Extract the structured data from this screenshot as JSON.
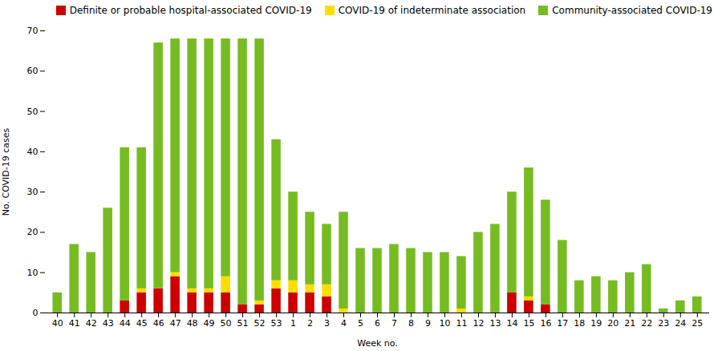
{
  "chart_data": {
    "type": "bar",
    "stacked": true,
    "categories": [
      "40",
      "41",
      "42",
      "43",
      "44",
      "45",
      "46",
      "47",
      "48",
      "49",
      "50",
      "51",
      "52",
      "53",
      "1",
      "2",
      "3",
      "4",
      "5",
      "6",
      "7",
      "8",
      "9",
      "10",
      "11",
      "12",
      "13",
      "14",
      "15",
      "16",
      "17",
      "18",
      "19",
      "20",
      "21",
      "22",
      "23",
      "24",
      "25"
    ],
    "series": [
      {
        "name": "Definite or probable hospital-associated COVID-19",
        "color": "#cc0000",
        "values": [
          0,
          0,
          0,
          0,
          3,
          5,
          6,
          9,
          5,
          5,
          5,
          2,
          2,
          6,
          5,
          5,
          4,
          0,
          0,
          0,
          0,
          0,
          0,
          0,
          0,
          0,
          0,
          5,
          3,
          2,
          0,
          0,
          0,
          0,
          0,
          0,
          0,
          0,
          0
        ]
      },
      {
        "name": "COVID-19 of indeterminate association",
        "color": "#ffdd00",
        "values": [
          0,
          0,
          0,
          0,
          0,
          1,
          0,
          1,
          1,
          1,
          4,
          0,
          1,
          2,
          3,
          2,
          3,
          1,
          0,
          0,
          0,
          0,
          0,
          0,
          1,
          0,
          0,
          0,
          1,
          0,
          0,
          0,
          0,
          0,
          0,
          0,
          0,
          0,
          0
        ]
      },
      {
        "name": "Community-associated COVID-19",
        "color": "#77bb22",
        "values": [
          5,
          17,
          15,
          26,
          38,
          35,
          61,
          58,
          62,
          62,
          59,
          66,
          65,
          35,
          22,
          18,
          15,
          24,
          16,
          16,
          17,
          16,
          15,
          15,
          13,
          20,
          22,
          25,
          32,
          26,
          18,
          8,
          9,
          8,
          10,
          12,
          1,
          3,
          4
        ]
      }
    ],
    "xlabel": "Week no.",
    "ylabel": "No. COVID-19 cases",
    "ylim": [
      0,
      70
    ],
    "yticks": [
      0,
      10,
      20,
      30,
      40,
      50,
      60,
      70
    ],
    "grid": false,
    "legend": "upper right"
  }
}
